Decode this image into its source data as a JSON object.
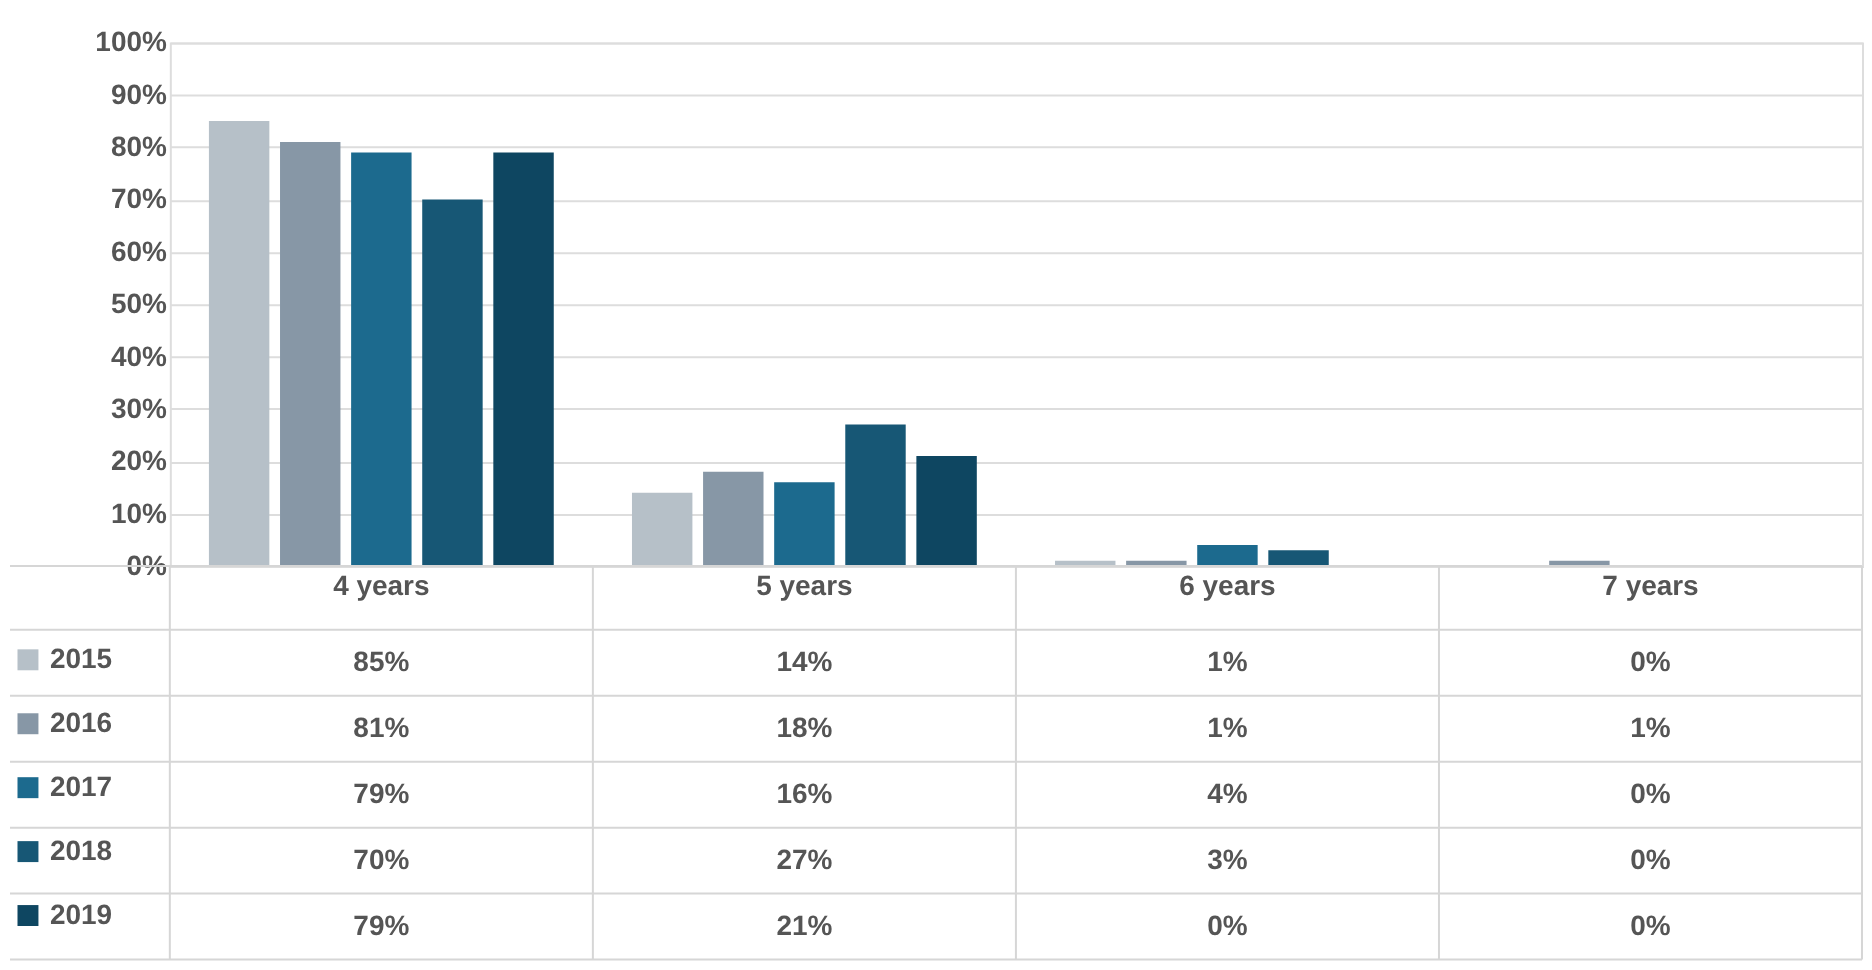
{
  "chart_data": {
    "type": "bar",
    "categories": [
      "4 years",
      "5 years",
      "6 years",
      "7 years"
    ],
    "series": [
      {
        "name": "2015",
        "color": "#b6c0c8",
        "values": [
          85,
          14,
          1,
          0
        ],
        "value_labels": [
          "85%",
          "14%",
          "1%",
          "0%"
        ]
      },
      {
        "name": "2016",
        "color": "#8797a6",
        "values": [
          81,
          18,
          1,
          1
        ],
        "value_labels": [
          "81%",
          "18%",
          "1%",
          "1%"
        ]
      },
      {
        "name": "2017",
        "color": "#1c6a8e",
        "values": [
          79,
          16,
          4,
          0
        ],
        "value_labels": [
          "79%",
          "16%",
          "4%",
          "0%"
        ]
      },
      {
        "name": "2018",
        "color": "#175775",
        "values": [
          70,
          27,
          3,
          0
        ],
        "value_labels": [
          "70%",
          "27%",
          "3%",
          "0%"
        ]
      },
      {
        "name": "2019",
        "color": "#0e4661",
        "values": [
          79,
          21,
          0,
          0
        ],
        "value_labels": [
          "79%",
          "21%",
          "0%",
          "0%"
        ]
      }
    ],
    "ylim": [
      0,
      100
    ],
    "yticks": [
      {
        "value": 0,
        "label": "0%"
      },
      {
        "value": 10,
        "label": "10%"
      },
      {
        "value": 20,
        "label": "20%"
      },
      {
        "value": 30,
        "label": "30%"
      },
      {
        "value": 40,
        "label": "40%"
      },
      {
        "value": 50,
        "label": "50%"
      },
      {
        "value": 60,
        "label": "60%"
      },
      {
        "value": 70,
        "label": "70%"
      },
      {
        "value": 80,
        "label": "80%"
      },
      {
        "value": 90,
        "label": "90%"
      },
      {
        "value": 100,
        "label": "100%"
      }
    ],
    "grid": "y",
    "legend": "left"
  }
}
